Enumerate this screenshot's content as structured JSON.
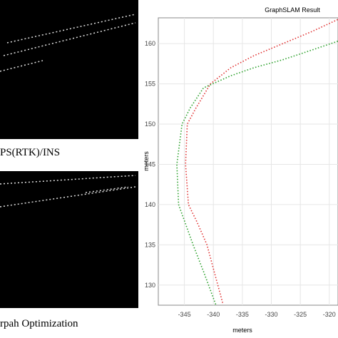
{
  "captions": [
    "PS(RTK)/INS",
    "rpah Optimization"
  ],
  "chart_data": {
    "type": "line",
    "title": "GraphSLAM Result",
    "xlabel": "meters",
    "ylabel": "meters",
    "xlim": [
      -349.5,
      -318.5
    ],
    "ylim": [
      127.5,
      163.2
    ],
    "xticks": [
      -345,
      -340,
      -335,
      -330,
      -325,
      -320
    ],
    "yticks": [
      130,
      135,
      140,
      145,
      150,
      155,
      160
    ],
    "grid": true,
    "series": [
      {
        "color": "#e03030",
        "x": [
          -338.4,
          -339.8,
          -341.1,
          -342.8,
          -344.3,
          -344.8,
          -344.5,
          -343,
          -340.5,
          -337,
          -333,
          -328,
          -323,
          -318.5
        ],
        "values": [
          127.8,
          131.5,
          135,
          137.8,
          140,
          145,
          150,
          152,
          155,
          157,
          158.5,
          160,
          161.5,
          163
        ]
      },
      {
        "color": "#2aa02a",
        "x": [
          -339.6,
          -341.6,
          -343.5,
          -346,
          -346.3,
          -345.4,
          -344,
          -341.7,
          -337,
          -333,
          -328,
          -323,
          -318.5
        ],
        "values": [
          127.6,
          131.5,
          135,
          140,
          145,
          150,
          152,
          154.5,
          156,
          157,
          158,
          159.2,
          160.3
        ]
      }
    ]
  }
}
